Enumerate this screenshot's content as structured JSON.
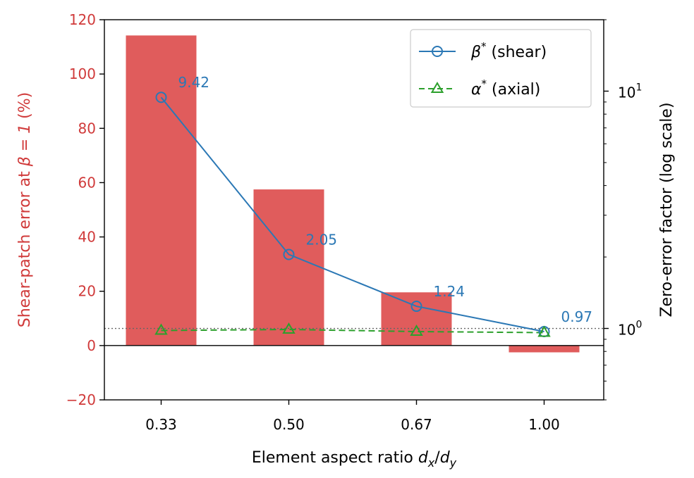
{
  "chart_data": {
    "type": "bar",
    "categories": [
      "0.33",
      "0.50",
      "0.67",
      "1.00"
    ],
    "bars": {
      "values": [
        114.2,
        57.5,
        19.6,
        -2.5
      ],
      "color": "#e05c5c"
    },
    "xlabel_main": "Element aspect ratio ",
    "xlabel_math": "d",
    "xlabel_sub1": "x",
    "xlabel_slash": "/",
    "xlabel_sub2": "y",
    "ylabel_left_main": "Shear-patch error at ",
    "ylabel_left_math": "β = 1",
    "ylabel_left_end": " (%)",
    "ylabel_right": "Zero-error factor (log scale)",
    "ylim_left": [
      -20,
      120
    ],
    "yticks_left": [
      -20,
      0,
      20,
      40,
      60,
      80,
      100,
      120
    ],
    "yticks_left_labels": [
      "−20",
      "0",
      "20",
      "40",
      "60",
      "80",
      "100",
      "120"
    ],
    "ylim_right_log": [
      0.5,
      20
    ],
    "yticks_right_labels": [
      {
        "value": 1,
        "base": "10",
        "exp": "0"
      },
      {
        "value": 10,
        "base": "10",
        "exp": "1"
      }
    ],
    "reference_line": {
      "value": 1.0,
      "axis": "right",
      "style": "dotted"
    },
    "series": [
      {
        "name": "β* (shear)",
        "legend_sym": "β",
        "legend_rest": " (shear)",
        "values": [
          9.42,
          2.05,
          1.24,
          0.97
        ],
        "labels": [
          "9.42",
          "2.05",
          "1.24",
          "0.97"
        ],
        "color": "#2b78b5",
        "marker": "circle",
        "line": "solid"
      },
      {
        "name": "α* (axial)",
        "legend_sym": "α",
        "legend_rest": " (axial)",
        "values": [
          0.98,
          0.99,
          0.97,
          0.96
        ],
        "color": "#2ca02c",
        "marker": "triangle",
        "line": "dashed"
      }
    ],
    "legend_position": "top-right",
    "left_axis_color": "#d03a3a"
  }
}
